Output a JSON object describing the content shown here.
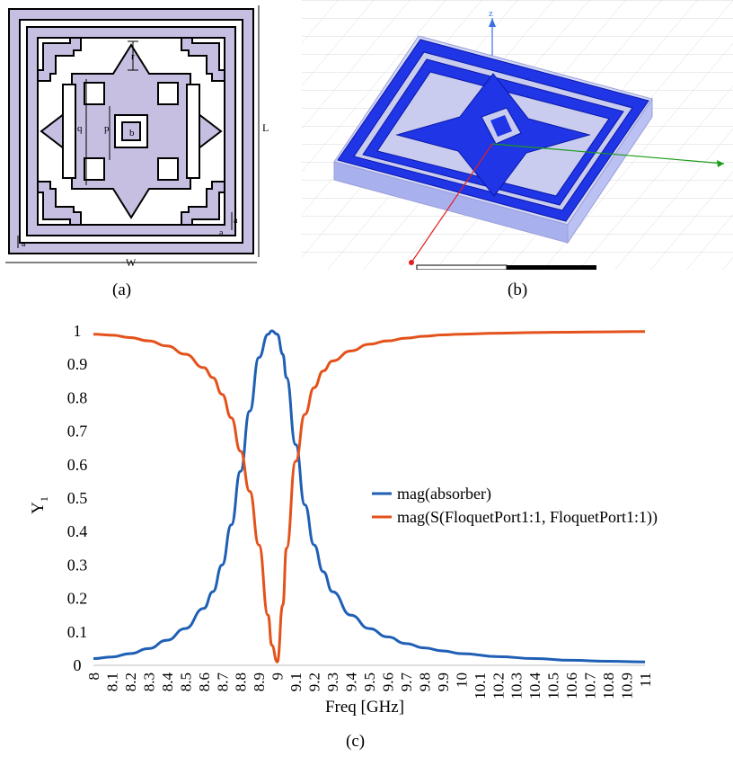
{
  "panel_a": {
    "caption": "(a)",
    "dims": {
      "r": "r",
      "q": "q",
      "p": "p",
      "b": "b",
      "L": "L",
      "W": "W",
      "a1": "a",
      "a2": "a",
      "a3": "a"
    },
    "colors": {
      "fill": "#c7bfe2",
      "line": "#000000"
    }
  },
  "panel_b": {
    "caption": "(b)",
    "axis_z": "z",
    "colors": {
      "metal": "#1f35e6",
      "substrate": "#b7bdf0",
      "grid": "#d8d8d8",
      "x_axis": "#1a9b1a",
      "y_axis": "#e02020",
      "z_axis": "#3d6fe0"
    }
  },
  "panel_c": {
    "caption": "(c)",
    "chart_data": {
      "type": "line",
      "xlabel": "Freq [GHz]",
      "ylabel": "Y",
      "ylabel_sub": "1",
      "xlim": [
        8,
        11
      ],
      "ylim": [
        0,
        1
      ],
      "x_ticks": [
        "8",
        "8.1",
        "8.2",
        "8.3",
        "8.4",
        "8.5",
        "8.6",
        "8.7",
        "8.8",
        "8.9",
        "9",
        "9.1",
        "9.2",
        "9.3",
        "9.4",
        "9.5",
        "9.6",
        "9.7",
        "9.8",
        "9.9",
        "10",
        "10.1",
        "10.2",
        "10.3",
        "10.4",
        "10.5",
        "10.6",
        "10.7",
        "10.8",
        "10.9",
        "11"
      ],
      "y_ticks": [
        "0",
        "0.1",
        "0.2",
        "0.3",
        "0.4",
        "0.5",
        "0.6",
        "0.7",
        "0.8",
        "0.9",
        "1"
      ],
      "grid": false,
      "legend_position": "right",
      "x": [
        8.0,
        8.1,
        8.2,
        8.3,
        8.4,
        8.5,
        8.6,
        8.65,
        8.7,
        8.75,
        8.8,
        8.85,
        8.9,
        8.95,
        8.97,
        9.0,
        9.03,
        9.05,
        9.1,
        9.15,
        9.2,
        9.25,
        9.3,
        9.4,
        9.5,
        9.6,
        9.7,
        9.8,
        9.9,
        10.0,
        10.2,
        10.4,
        10.6,
        10.8,
        11.0
      ],
      "series": [
        {
          "name": "mag(absorber)",
          "color": "#1f5fb5",
          "values": [
            0.02,
            0.025,
            0.035,
            0.05,
            0.075,
            0.11,
            0.17,
            0.22,
            0.3,
            0.42,
            0.58,
            0.76,
            0.92,
            0.99,
            1.0,
            0.99,
            0.93,
            0.86,
            0.66,
            0.48,
            0.36,
            0.28,
            0.22,
            0.15,
            0.11,
            0.085,
            0.065,
            0.052,
            0.043,
            0.035,
            0.026,
            0.02,
            0.015,
            0.012,
            0.01
          ]
        },
        {
          "name": "mag(S(FloquetPort1:1, FloquetPort1:1))",
          "color": "#e3521b",
          "values": [
            0.99,
            0.987,
            0.98,
            0.97,
            0.955,
            0.93,
            0.89,
            0.86,
            0.81,
            0.74,
            0.64,
            0.52,
            0.36,
            0.15,
            0.06,
            0.01,
            0.18,
            0.35,
            0.61,
            0.75,
            0.83,
            0.88,
            0.91,
            0.94,
            0.96,
            0.97,
            0.978,
            0.984,
            0.988,
            0.99,
            0.993,
            0.995,
            0.996,
            0.997,
            0.998
          ]
        }
      ]
    }
  }
}
